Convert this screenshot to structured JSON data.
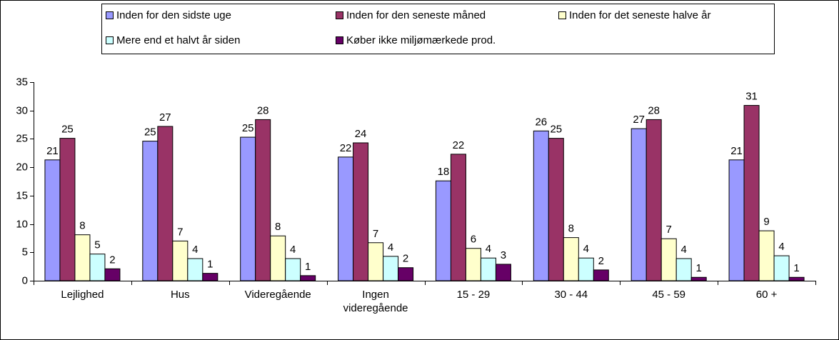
{
  "chart_data": {
    "type": "bar",
    "categories": [
      "Lejlighed",
      "Hus",
      "Videregående",
      "Ingen videregående",
      "15 - 29",
      "30 - 44",
      "45 - 59",
      "60 +"
    ],
    "series": [
      {
        "name": "Inden for den sidste uge",
        "color": "#9999ff",
        "values": [
          21.3,
          24.6,
          25.3,
          21.8,
          17.6,
          26.4,
          26.8,
          21.3
        ],
        "value_labels": [
          "21",
          "25",
          "25",
          "22",
          "18",
          "26",
          "27",
          "21"
        ]
      },
      {
        "name": "Inden for den seneste måned",
        "color": "#993366",
        "values": [
          25.1,
          27.2,
          28.4,
          24.3,
          22.3,
          25.1,
          28.4,
          30.9
        ],
        "value_labels": [
          "25",
          "27",
          "28",
          "24",
          "22",
          "25",
          "28",
          "31"
        ]
      },
      {
        "name": "Inden for det seneste halve år",
        "color": "#ffffcc",
        "values": [
          8.1,
          7.0,
          7.9,
          6.7,
          5.7,
          7.6,
          7.4,
          8.8
        ],
        "value_labels": [
          "8",
          "7",
          "8",
          "7",
          "6",
          "8",
          "7",
          "9"
        ]
      },
      {
        "name": "Mere end et halvt år siden",
        "color": "#ccffff",
        "values": [
          4.7,
          3.9,
          3.9,
          4.3,
          4.0,
          4.0,
          3.9,
          4.4
        ],
        "value_labels": [
          "5",
          "4",
          "4",
          "4",
          "4",
          "4",
          "4",
          "4"
        ]
      },
      {
        "name": "Køber ikke miljømærkede prod.",
        "color": "#660066",
        "values": [
          2.1,
          1.3,
          0.9,
          2.3,
          2.9,
          1.9,
          0.6,
          0.6
        ],
        "value_labels": [
          "2",
          "1",
          "1",
          "2",
          "3",
          "2",
          "1",
          "1"
        ]
      }
    ],
    "ylim": [
      0,
      35
    ],
    "yticks": [
      0,
      5,
      10,
      15,
      20,
      25,
      30,
      35
    ],
    "grid": false,
    "legend": "top"
  }
}
